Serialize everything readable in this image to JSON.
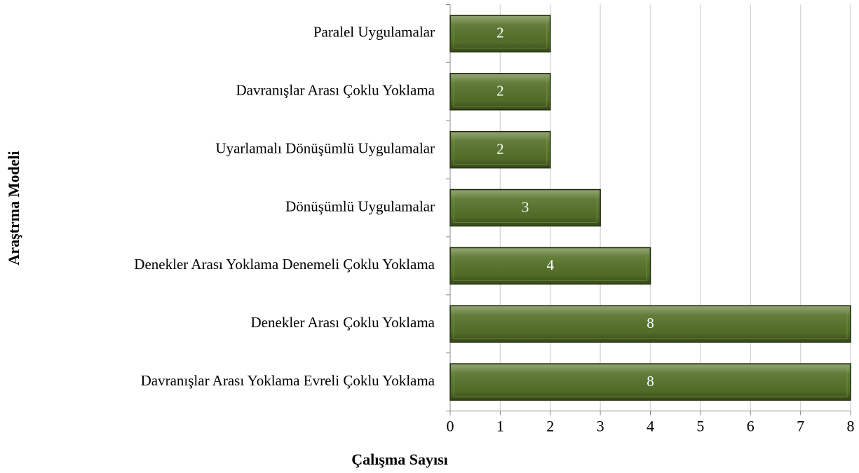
{
  "chart_data": {
    "type": "barh",
    "categories": [
      "Paralel Uygulamalar",
      "Davranışlar Arası Çoklu Yoklama",
      "Uyarlamalı Dönüşümlü Uygulamalar",
      "Dönüşümlü Uygulamalar",
      "Denekler Arası Yoklama Denemeli Çoklu Yoklama",
      "Denekler Arası Çoklu Yoklama",
      "Davranışlar Arası Yoklama Evreli Çoklu Yoklama"
    ],
    "values": [
      2,
      2,
      2,
      3,
      4,
      8,
      8
    ],
    "color": "#56722a",
    "xlabel": "Çalışma Sayısı",
    "ylabel": "Araştrma Modeli",
    "xlim": [
      0,
      8
    ],
    "xticks": [
      0,
      1,
      2,
      3,
      4,
      5,
      6,
      7,
      8
    ],
    "grid": true
  }
}
